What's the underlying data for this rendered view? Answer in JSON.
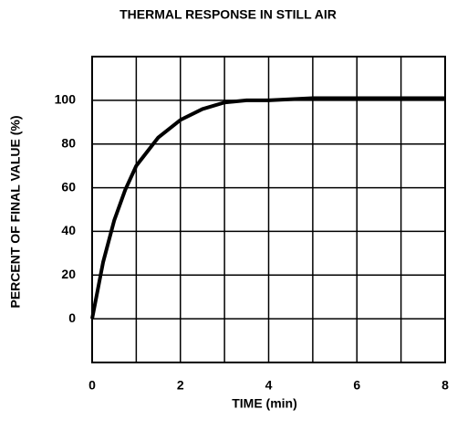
{
  "chart_data": {
    "type": "line",
    "title": "THERMAL RESPONSE IN STILL AIR",
    "x_label": "TIME (min)",
    "y_label": "PERCENT OF FINAL VALUE (%)",
    "x": [
      0,
      0.25,
      0.5,
      0.75,
      1,
      1.5,
      2,
      2.5,
      3,
      3.5,
      4,
      5,
      6,
      7,
      8
    ],
    "series": [
      {
        "name": "Thermal response",
        "color": "#000000",
        "values": [
          0,
          26,
          45,
          59,
          70,
          83,
          91,
          96,
          99,
          100,
          100,
          101,
          101,
          101,
          101
        ]
      }
    ],
    "xlim": [
      0,
      8
    ],
    "xticks": [
      0,
      2,
      4,
      6,
      8
    ],
    "ylim": [
      -20,
      120
    ],
    "yticks": [
      0,
      20,
      40,
      60,
      80,
      100
    ],
    "grid": true,
    "legend": false
  }
}
